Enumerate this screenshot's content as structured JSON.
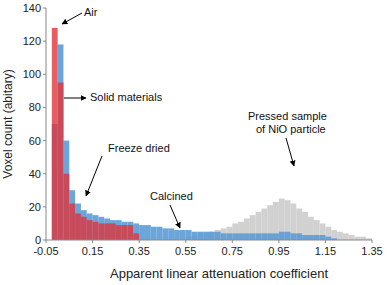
{
  "chart_data": {
    "type": "histogram",
    "x_label": "Apparent linear attenuation coefficient",
    "y_label": "Voxel count (abitary)",
    "xlim": [
      -0.05,
      1.35
    ],
    "ylim": [
      0,
      140
    ],
    "xticks": [
      -0.05,
      0.15,
      0.35,
      0.55,
      0.75,
      0.95,
      1.15,
      1.35
    ],
    "yticks": [
      0,
      20,
      40,
      60,
      80,
      100,
      120,
      140
    ],
    "bins": [
      -0.05,
      -0.025,
      0,
      0.025,
      0.05,
      0.075,
      0.1,
      0.125,
      0.15,
      0.175,
      0.2,
      0.225,
      0.25,
      0.275,
      0.3,
      0.325,
      0.35,
      0.375,
      0.4,
      0.425,
      0.45,
      0.475,
      0.5,
      0.525,
      0.55,
      0.575,
      0.6,
      0.625,
      0.65,
      0.675,
      0.7,
      0.725,
      0.75,
      0.775,
      0.8,
      0.825,
      0.85,
      0.875,
      0.9,
      0.925,
      0.95,
      0.975,
      1,
      1.025,
      1.05,
      1.075,
      1.1,
      1.125,
      1.15,
      1.175,
      1.2,
      1.225,
      1.25,
      1.275,
      1.3,
      1.325,
      1.35
    ],
    "series": [
      {
        "name": "Pressed sample of NiO particle",
        "color": "#c9c9c9",
        "values": [
          0,
          0,
          0,
          0,
          0,
          0,
          0,
          0,
          0,
          0,
          0,
          0,
          0,
          0,
          0,
          0,
          0,
          0,
          0,
          0,
          0,
          0,
          0,
          0,
          2,
          3,
          4,
          4,
          5,
          6,
          7,
          8,
          10,
          11,
          13,
          15,
          17,
          19,
          21,
          23,
          25,
          24,
          22,
          19,
          17,
          14,
          12,
          10,
          8,
          6,
          5,
          4,
          3,
          2,
          2,
          1
        ]
      },
      {
        "name": "Calcined",
        "color": "#5b9bd5",
        "values": [
          0,
          70,
          118,
          60,
          30,
          22,
          18,
          16,
          15,
          14,
          13,
          12,
          12,
          11,
          11,
          10,
          9,
          9,
          8,
          8,
          7,
          7,
          6,
          6,
          6,
          5,
          5,
          5,
          5,
          5,
          4,
          4,
          4,
          4,
          4,
          4,
          4,
          4,
          4,
          4,
          5,
          5,
          4,
          4,
          3,
          3,
          3,
          3,
          2,
          1,
          0,
          0,
          0,
          0,
          0,
          0
        ]
      },
      {
        "name": "Freeze dried",
        "color": "#e0353b",
        "values": [
          0,
          128,
          95,
          40,
          22,
          16,
          14,
          12,
          11,
          10,
          10,
          10,
          9,
          9,
          9,
          4,
          0,
          0,
          0,
          0,
          0,
          0,
          0,
          0,
          0,
          0,
          0,
          0,
          0,
          0,
          0,
          0,
          0,
          0,
          0,
          0,
          0,
          0,
          0,
          0,
          0,
          0,
          0,
          0,
          0,
          0,
          0,
          0,
          0,
          0,
          0,
          0,
          0,
          0,
          0,
          0
        ]
      }
    ],
    "annotations": [
      "Air",
      "Solid materials",
      "Freeze dried",
      "Calcined",
      "Pressed sample of NiO particle"
    ]
  }
}
